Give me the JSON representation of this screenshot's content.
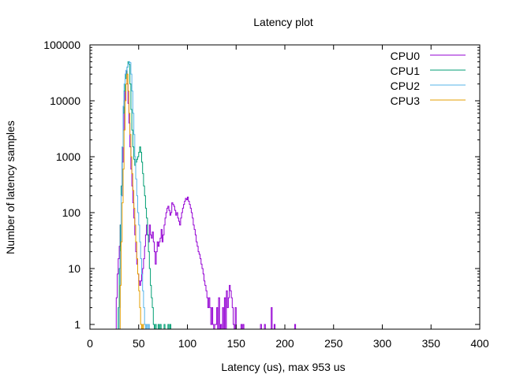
{
  "chart_data": {
    "type": "line",
    "title": "Latency plot",
    "xlabel": "Latency (us), max 953 us",
    "ylabel": "Number of latency samples",
    "xlim": [
      0,
      400
    ],
    "ylim": [
      0.8,
      100000
    ],
    "yscale": "log",
    "grid": false,
    "legend_position": "top-right",
    "x_ticks": [
      "0",
      "50",
      "100",
      "150",
      "200",
      "250",
      "300",
      "350",
      "400"
    ],
    "y_ticks": [
      "1",
      "10",
      "100",
      "1000",
      "10000",
      "100000"
    ],
    "series": [
      {
        "name": "CPU0",
        "color": "#9400d3",
        "points": [
          [
            26,
            0
          ],
          [
            27,
            3
          ],
          [
            28,
            8
          ],
          [
            29,
            15
          ],
          [
            30,
            25
          ],
          [
            31,
            60
          ],
          [
            32,
            200
          ],
          [
            33,
            800
          ],
          [
            34,
            3000
          ],
          [
            35,
            10000
          ],
          [
            36,
            30000
          ],
          [
            37,
            35000
          ],
          [
            38,
            20000
          ],
          [
            39,
            9000
          ],
          [
            40,
            4000
          ],
          [
            41,
            1500
          ],
          [
            42,
            600
          ],
          [
            43,
            300
          ],
          [
            44,
            150
          ],
          [
            45,
            80
          ],
          [
            46,
            40
          ],
          [
            47,
            20
          ],
          [
            48,
            12
          ],
          [
            49,
            8
          ],
          [
            50,
            6
          ],
          [
            51,
            5
          ],
          [
            52,
            6
          ],
          [
            53,
            8
          ],
          [
            54,
            10
          ],
          [
            55,
            15
          ],
          [
            56,
            25
          ],
          [
            57,
            40
          ],
          [
            58,
            60
          ],
          [
            59,
            40
          ],
          [
            60,
            30
          ],
          [
            61,
            60
          ],
          [
            62,
            40
          ],
          [
            63,
            35
          ],
          [
            64,
            45
          ],
          [
            65,
            30
          ],
          [
            66,
            20
          ],
          [
            67,
            12
          ],
          [
            68,
            20
          ],
          [
            69,
            30
          ],
          [
            70,
            25
          ],
          [
            71,
            30
          ],
          [
            72,
            35
          ],
          [
            73,
            50
          ],
          [
            74,
            30
          ],
          [
            75,
            40
          ],
          [
            76,
            60
          ],
          [
            77,
            80
          ],
          [
            78,
            100
          ],
          [
            79,
            120
          ],
          [
            80,
            130
          ],
          [
            81,
            110
          ],
          [
            82,
            90
          ],
          [
            83,
            100
          ],
          [
            84,
            150
          ],
          [
            85,
            140
          ],
          [
            86,
            130
          ],
          [
            87,
            110
          ],
          [
            88,
            90
          ],
          [
            89,
            100
          ],
          [
            90,
            80
          ],
          [
            91,
            70
          ],
          [
            92,
            60
          ],
          [
            93,
            80
          ],
          [
            94,
            100
          ],
          [
            95,
            120
          ],
          [
            96,
            140
          ],
          [
            97,
            160
          ],
          [
            98,
            180
          ],
          [
            99,
            170
          ],
          [
            100,
            190
          ],
          [
            101,
            160
          ],
          [
            102,
            140
          ],
          [
            103,
            120
          ],
          [
            104,
            100
          ],
          [
            105,
            80
          ],
          [
            106,
            60
          ],
          [
            107,
            50
          ],
          [
            108,
            40
          ],
          [
            109,
            30
          ],
          [
            110,
            25
          ],
          [
            111,
            20
          ],
          [
            112,
            18
          ],
          [
            113,
            15
          ],
          [
            114,
            12
          ],
          [
            115,
            10
          ],
          [
            116,
            8
          ],
          [
            117,
            6
          ],
          [
            118,
            5
          ],
          [
            119,
            4
          ],
          [
            120,
            3
          ],
          [
            121,
            2
          ],
          [
            122,
            3
          ],
          [
            123,
            2
          ],
          [
            124,
            1
          ],
          [
            125,
            2
          ],
          [
            126,
            1
          ],
          [
            127,
            0
          ],
          [
            128,
            1
          ],
          [
            130,
            2
          ],
          [
            131,
            0
          ],
          [
            132,
            3
          ],
          [
            133,
            0
          ],
          [
            134,
            1
          ],
          [
            135,
            0
          ],
          [
            136,
            2
          ],
          [
            137,
            0
          ],
          [
            138,
            3
          ],
          [
            139,
            0
          ],
          [
            140,
            4
          ],
          [
            141,
            2
          ],
          [
            142,
            3
          ],
          [
            143,
            5
          ],
          [
            144,
            4
          ],
          [
            145,
            3
          ],
          [
            146,
            2
          ],
          [
            147,
            1
          ],
          [
            148,
            0
          ],
          [
            149,
            2
          ],
          [
            150,
            0
          ],
          [
            155,
            1
          ],
          [
            156,
            0
          ],
          [
            157,
            1
          ],
          [
            158,
            0
          ],
          [
            175,
            1
          ],
          [
            176,
            0
          ],
          [
            179,
            1
          ],
          [
            180,
            0
          ],
          [
            186,
            2
          ],
          [
            187,
            0
          ],
          [
            189,
            1
          ],
          [
            190,
            0
          ],
          [
            210,
            1
          ],
          [
            211,
            0
          ]
        ]
      },
      {
        "name": "CPU1",
        "color": "#009e73",
        "points": [
          [
            28,
            0
          ],
          [
            29,
            2
          ],
          [
            30,
            10
          ],
          [
            31,
            60
          ],
          [
            32,
            300
          ],
          [
            33,
            1500
          ],
          [
            34,
            6000
          ],
          [
            35,
            15000
          ],
          [
            36,
            25000
          ],
          [
            37,
            30000
          ],
          [
            38,
            40000
          ],
          [
            39,
            50000
          ],
          [
            40,
            45000
          ],
          [
            41,
            20000
          ],
          [
            42,
            7000
          ],
          [
            43,
            3000
          ],
          [
            44,
            1500
          ],
          [
            45,
            900
          ],
          [
            46,
            700
          ],
          [
            47,
            800
          ],
          [
            48,
            900
          ],
          [
            49,
            1000
          ],
          [
            50,
            1200
          ],
          [
            51,
            1500
          ],
          [
            52,
            1200
          ],
          [
            53,
            800
          ],
          [
            54,
            500
          ],
          [
            55,
            300
          ],
          [
            56,
            200
          ],
          [
            57,
            120
          ],
          [
            58,
            80
          ],
          [
            59,
            40
          ],
          [
            60,
            20
          ],
          [
            61,
            10
          ],
          [
            62,
            5
          ],
          [
            63,
            3
          ],
          [
            64,
            2
          ],
          [
            65,
            1
          ],
          [
            66,
            0
          ],
          [
            67,
            1
          ],
          [
            68,
            0
          ],
          [
            70,
            1
          ],
          [
            71,
            0
          ],
          [
            72,
            1
          ],
          [
            73,
            0
          ],
          [
            76,
            1
          ],
          [
            77,
            0
          ],
          [
            80,
            1
          ],
          [
            81,
            0
          ],
          [
            82,
            1
          ],
          [
            83,
            0
          ]
        ]
      },
      {
        "name": "CPU2",
        "color": "#56b4e9",
        "points": [
          [
            29,
            0
          ],
          [
            30,
            2
          ],
          [
            31,
            20
          ],
          [
            32,
            200
          ],
          [
            33,
            1500
          ],
          [
            34,
            8000
          ],
          [
            35,
            20000
          ],
          [
            36,
            30000
          ],
          [
            37,
            35000
          ],
          [
            38,
            40000
          ],
          [
            39,
            45000
          ],
          [
            40,
            50000
          ],
          [
            41,
            48000
          ],
          [
            42,
            30000
          ],
          [
            43,
            15000
          ],
          [
            44,
            6000
          ],
          [
            45,
            2500
          ],
          [
            46,
            1000
          ],
          [
            47,
            400
          ],
          [
            48,
            200
          ],
          [
            49,
            100
          ],
          [
            50,
            60
          ],
          [
            51,
            30
          ],
          [
            52,
            15
          ],
          [
            53,
            8
          ],
          [
            54,
            4
          ],
          [
            55,
            2
          ],
          [
            56,
            1
          ],
          [
            57,
            0
          ],
          [
            58,
            1
          ],
          [
            59,
            0
          ],
          [
            60,
            1
          ],
          [
            61,
            0
          ]
        ]
      },
      {
        "name": "CPU3",
        "color": "#e69f00",
        "points": [
          [
            30,
            0
          ],
          [
            31,
            5
          ],
          [
            32,
            30
          ],
          [
            33,
            150
          ],
          [
            34,
            600
          ],
          [
            35,
            3000
          ],
          [
            36,
            10000
          ],
          [
            37,
            20000
          ],
          [
            38,
            30000
          ],
          [
            39,
            15000
          ],
          [
            40,
            6000
          ],
          [
            41,
            2500
          ],
          [
            42,
            1000
          ],
          [
            43,
            500
          ],
          [
            44,
            250
          ],
          [
            45,
            120
          ],
          [
            46,
            60
          ],
          [
            47,
            30
          ],
          [
            48,
            15
          ],
          [
            49,
            8
          ],
          [
            50,
            4
          ],
          [
            51,
            2
          ],
          [
            52,
            1
          ],
          [
            53,
            0
          ],
          [
            54,
            1
          ],
          [
            55,
            0
          ]
        ]
      }
    ]
  }
}
